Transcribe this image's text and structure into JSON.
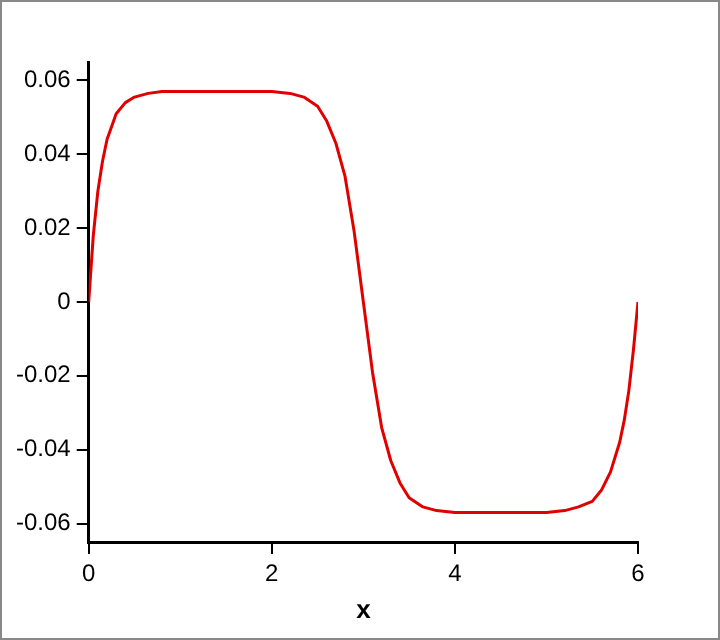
{
  "chart_data": {
    "type": "line",
    "xlabel": "x",
    "series": [
      {
        "color": "#e00000",
        "x": [
          0,
          0.05,
          0.1,
          0.15,
          0.2,
          0.3,
          0.4,
          0.5,
          0.65,
          0.8,
          1.0,
          2.0,
          2.2,
          2.35,
          2.5,
          2.6,
          2.7,
          2.8,
          2.9,
          3.0,
          3.1,
          3.2,
          3.3,
          3.4,
          3.5,
          3.65,
          3.8,
          4.0,
          5.0,
          5.2,
          5.35,
          5.5,
          5.6,
          5.7,
          5.8,
          5.85,
          5.9,
          5.95,
          6.0
        ],
        "values": [
          0,
          0.018,
          0.03,
          0.038,
          0.044,
          0.051,
          0.054,
          0.0555,
          0.0565,
          0.057,
          0.057,
          0.057,
          0.0565,
          0.0555,
          0.053,
          0.049,
          0.043,
          0.034,
          0.019,
          0,
          -0.019,
          -0.034,
          -0.043,
          -0.049,
          -0.053,
          -0.0555,
          -0.0565,
          -0.057,
          -0.057,
          -0.0565,
          -0.0555,
          -0.054,
          -0.051,
          -0.046,
          -0.038,
          -0.032,
          -0.024,
          -0.013,
          0
        ]
      }
    ],
    "xlim": [
      0,
      6
    ],
    "xticks": [
      0,
      2,
      4,
      6
    ],
    "ylim": [
      -0.065,
      0.065
    ],
    "yticks": [
      -0.06,
      -0.04,
      -0.02,
      0,
      0.02,
      0.04,
      0.06
    ],
    "grid": false,
    "legend": false,
    "marker": "none",
    "line_style": "solid"
  }
}
